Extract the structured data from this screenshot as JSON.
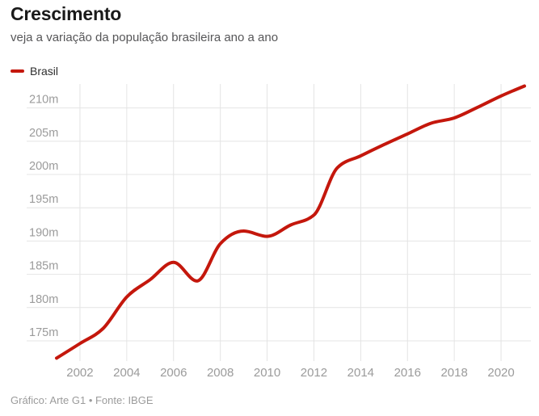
{
  "header": {
    "title": "Crescimento",
    "subtitle": "veja a variação da população brasileira ano a ano"
  },
  "legend": {
    "series_label": "Brasil",
    "color": "#c4170c"
  },
  "footer": {
    "credit": "Gráfico: Arte G1 • Fonte: IBGE"
  },
  "chart_data": {
    "type": "line",
    "title": "Crescimento",
    "subtitle": "veja a variação da população brasileira ano a ano",
    "xlabel": "",
    "ylabel": "",
    "grid": true,
    "legend_position": "top-left",
    "line_color": "#c4170c",
    "grid_color": "#e4e4e4",
    "tick_label_color": "#9b9b9b",
    "unit_suffix": "m",
    "xlim": [
      2001,
      2021
    ],
    "ylim": [
      171.96,
      213.6
    ],
    "x_ticks": [
      2002,
      2004,
      2006,
      2008,
      2010,
      2012,
      2014,
      2016,
      2018,
      2020
    ],
    "y_ticks": [
      175,
      180,
      185,
      190,
      195,
      200,
      205,
      210
    ],
    "y_tick_labels": [
      "175m",
      "180m",
      "185m",
      "190m",
      "195m",
      "200m",
      "205m",
      "210m"
    ],
    "series": [
      {
        "name": "Brasil",
        "x": [
          2001,
          2002,
          2003,
          2004,
          2005,
          2006,
          2007,
          2008,
          2009,
          2010,
          2011,
          2012,
          2013,
          2014,
          2015,
          2016,
          2017,
          2018,
          2019,
          2020,
          2021
        ],
        "values": [
          172.4,
          174.6,
          176.9,
          181.6,
          184.2,
          186.8,
          184.0,
          189.6,
          191.5,
          190.7,
          192.4,
          193.9,
          201.0,
          202.8,
          204.5,
          206.1,
          207.7,
          208.5,
          210.1,
          211.8,
          213.3
        ]
      }
    ]
  }
}
